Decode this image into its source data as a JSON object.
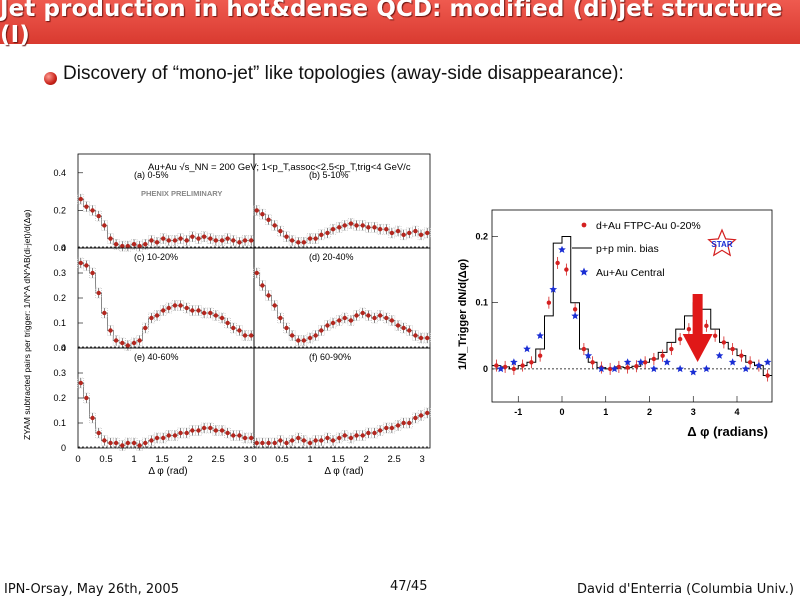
{
  "slide": {
    "title": "Jet production in hot&dense QCD: modified (di)jet structure (I)",
    "bullet": "Discovery of “mono-jet” like topologies (away-side disappearance):",
    "accent_color": "#e8463c"
  },
  "footer": {
    "left": "IPN-Orsay, May 26th, 2005",
    "center": "47/45",
    "right": "David d'Enterria (Columbia Univ.)"
  },
  "chart_data": [
    {
      "type": "scatter",
      "ylabel": "ZYAM subtracted pairs per trigger: 1/N^A dN^AB(di-jet)/d(Δφ)",
      "xlabel": "Δ φ (rad)",
      "header": "Au+Au √s_NN = 200 GeV;  1<p_T,assoc<2.5<p_T,trig<4 GeV/c",
      "watermark": "PHENIX PRELIMINARY",
      "xlim": [
        0,
        3.14
      ],
      "xticks": [
        "0",
        "0.5",
        "1",
        "1.5",
        "2",
        "2.5",
        "3"
      ],
      "panels": [
        {
          "label": "(a) 0-5%",
          "ylim": [
            0,
            0.5
          ],
          "yticks": [
            "0",
            "0.2",
            "0.4"
          ],
          "x": [
            0.05,
            0.15,
            0.26,
            0.37,
            0.47,
            0.58,
            0.68,
            0.79,
            0.89,
            1.0,
            1.1,
            1.2,
            1.31,
            1.41,
            1.52,
            1.62,
            1.73,
            1.83,
            1.94,
            2.04,
            2.15,
            2.25,
            2.36,
            2.46,
            2.57,
            2.67,
            2.77,
            2.88,
            2.98,
            3.09
          ],
          "y": [
            0.26,
            0.22,
            0.2,
            0.17,
            0.12,
            0.05,
            0.02,
            0.01,
            0.01,
            0.02,
            0.01,
            0.02,
            0.04,
            0.03,
            0.05,
            0.04,
            0.04,
            0.05,
            0.04,
            0.06,
            0.05,
            0.06,
            0.05,
            0.04,
            0.04,
            0.05,
            0.04,
            0.03,
            0.04,
            0.04
          ]
        },
        {
          "label": "(b) 5-10%",
          "ylim": [
            0,
            0.5
          ],
          "x": [
            0.05,
            0.15,
            0.26,
            0.37,
            0.47,
            0.58,
            0.68,
            0.79,
            0.89,
            1.0,
            1.1,
            1.2,
            1.31,
            1.41,
            1.52,
            1.62,
            1.73,
            1.83,
            1.94,
            2.04,
            2.15,
            2.25,
            2.36,
            2.46,
            2.57,
            2.67,
            2.77,
            2.88,
            2.98,
            3.09
          ],
          "y": [
            0.2,
            0.18,
            0.15,
            0.12,
            0.09,
            0.06,
            0.04,
            0.03,
            0.03,
            0.05,
            0.05,
            0.07,
            0.08,
            0.1,
            0.11,
            0.12,
            0.13,
            0.12,
            0.12,
            0.11,
            0.11,
            0.1,
            0.1,
            0.08,
            0.09,
            0.07,
            0.08,
            0.09,
            0.07,
            0.08
          ]
        },
        {
          "label": "(c) 10-20%",
          "ylim": [
            0,
            0.4
          ],
          "yticks": [
            "0",
            "0.1",
            "0.2",
            "0.3",
            "0.4"
          ],
          "x": [
            0.05,
            0.15,
            0.26,
            0.37,
            0.47,
            0.58,
            0.68,
            0.79,
            0.89,
            1.0,
            1.1,
            1.2,
            1.31,
            1.41,
            1.52,
            1.62,
            1.73,
            1.83,
            1.94,
            2.04,
            2.15,
            2.25,
            2.36,
            2.46,
            2.57,
            2.67,
            2.77,
            2.88,
            2.98,
            3.09
          ],
          "y": [
            0.34,
            0.33,
            0.3,
            0.22,
            0.14,
            0.07,
            0.03,
            0.02,
            0.01,
            0.02,
            0.03,
            0.08,
            0.12,
            0.13,
            0.15,
            0.16,
            0.17,
            0.17,
            0.16,
            0.15,
            0.15,
            0.14,
            0.14,
            0.13,
            0.12,
            0.1,
            0.08,
            0.07,
            0.05,
            0.05
          ]
        },
        {
          "label": "(d) 20-40%",
          "ylim": [
            0,
            0.4
          ],
          "x": [
            0.05,
            0.15,
            0.26,
            0.37,
            0.47,
            0.58,
            0.68,
            0.79,
            0.89,
            1.0,
            1.1,
            1.2,
            1.31,
            1.41,
            1.52,
            1.62,
            1.73,
            1.83,
            1.94,
            2.04,
            2.15,
            2.25,
            2.36,
            2.46,
            2.57,
            2.67,
            2.77,
            2.88,
            2.98,
            3.09
          ],
          "y": [
            0.3,
            0.25,
            0.21,
            0.17,
            0.12,
            0.08,
            0.05,
            0.03,
            0.03,
            0.04,
            0.05,
            0.07,
            0.09,
            0.1,
            0.11,
            0.12,
            0.11,
            0.13,
            0.14,
            0.13,
            0.12,
            0.13,
            0.12,
            0.11,
            0.09,
            0.08,
            0.07,
            0.05,
            0.04,
            0.04
          ]
        },
        {
          "label": "(e) 40-60%",
          "ylim": [
            0,
            0.4
          ],
          "yticks": [
            "0",
            "0.1",
            "0.2",
            "0.3",
            "0.4"
          ],
          "x": [
            0.05,
            0.15,
            0.26,
            0.37,
            0.47,
            0.58,
            0.68,
            0.79,
            0.89,
            1.0,
            1.1,
            1.2,
            1.31,
            1.41,
            1.52,
            1.62,
            1.73,
            1.83,
            1.94,
            2.04,
            2.15,
            2.25,
            2.36,
            2.46,
            2.57,
            2.67,
            2.77,
            2.88,
            2.98,
            3.09
          ],
          "y": [
            0.26,
            0.2,
            0.12,
            0.06,
            0.03,
            0.02,
            0.02,
            0.01,
            0.02,
            0.02,
            0.01,
            0.02,
            0.03,
            0.04,
            0.04,
            0.05,
            0.05,
            0.06,
            0.06,
            0.07,
            0.07,
            0.08,
            0.08,
            0.07,
            0.07,
            0.06,
            0.05,
            0.05,
            0.04,
            0.04
          ]
        },
        {
          "label": "(f) 60-90%",
          "ylim": [
            0,
            0.4
          ],
          "x": [
            0.05,
            0.15,
            0.26,
            0.37,
            0.47,
            0.58,
            0.68,
            0.79,
            0.89,
            1.0,
            1.1,
            1.2,
            1.31,
            1.41,
            1.52,
            1.62,
            1.73,
            1.83,
            1.94,
            2.04,
            2.15,
            2.25,
            2.36,
            2.46,
            2.57,
            2.67,
            2.77,
            2.88,
            2.98,
            3.09
          ],
          "y": [
            0.02,
            0.02,
            0.02,
            0.02,
            0.03,
            0.02,
            0.03,
            0.04,
            0.03,
            0.02,
            0.03,
            0.03,
            0.04,
            0.03,
            0.04,
            0.05,
            0.04,
            0.05,
            0.05,
            0.06,
            0.06,
            0.07,
            0.08,
            0.08,
            0.09,
            0.1,
            0.1,
            0.12,
            0.13,
            0.14
          ]
        }
      ]
    },
    {
      "type": "scatter",
      "xlabel": "Δ φ (radians)",
      "ylabel": "1/N_Trigger dN/d(Δφ)",
      "xlim": [
        -1.6,
        4.8
      ],
      "ylim": [
        -0.05,
        0.24
      ],
      "xticks": [
        -1,
        0,
        1,
        2,
        3,
        4
      ],
      "yticks": [
        0,
        0.1,
        0.2
      ],
      "legend": [
        "d+Au FTPC-Au 0-20%",
        "p+p min. bias",
        "Au+Au Central"
      ],
      "logo": "STAR",
      "series": [
        {
          "name": "d+Au FTPC-Au 0-20%",
          "color": "#d42020",
          "x": [
            -1.5,
            -1.3,
            -1.1,
            -0.9,
            -0.7,
            -0.5,
            -0.3,
            -0.1,
            0.1,
            0.3,
            0.5,
            0.7,
            0.9,
            1.1,
            1.3,
            1.5,
            1.7,
            1.9,
            2.1,
            2.3,
            2.5,
            2.7,
            2.9,
            3.1,
            3.3,
            3.5,
            3.7,
            3.9,
            4.1,
            4.3,
            4.5,
            4.7
          ],
          "y": [
            0.005,
            0.003,
            0.0,
            0.005,
            0.01,
            0.02,
            0.1,
            0.16,
            0.15,
            0.09,
            0.03,
            0.01,
            0.002,
            0.0,
            0.003,
            0.002,
            0.004,
            0.01,
            0.015,
            0.02,
            0.03,
            0.045,
            0.06,
            0.07,
            0.065,
            0.05,
            0.04,
            0.03,
            0.02,
            0.01,
            0.005,
            -0.01
          ]
        },
        {
          "name": "p+p min. bias",
          "color": "#000000",
          "x": [
            -1.5,
            -1.3,
            -1.1,
            -0.9,
            -0.7,
            -0.5,
            -0.3,
            -0.1,
            0.1,
            0.3,
            0.5,
            0.7,
            0.9,
            1.1,
            1.3,
            1.5,
            1.7,
            1.9,
            2.1,
            2.3,
            2.5,
            2.7,
            2.9,
            3.1,
            3.3,
            3.5,
            3.7,
            3.9,
            4.1,
            4.3,
            4.5,
            4.7
          ],
          "y": [
            0.005,
            0.003,
            0.0,
            0.005,
            0.01,
            0.03,
            0.08,
            0.19,
            0.2,
            0.1,
            0.03,
            0.01,
            0.002,
            0.0,
            0.003,
            0.002,
            0.004,
            0.01,
            0.015,
            0.025,
            0.04,
            0.06,
            0.08,
            0.1,
            0.09,
            0.06,
            0.04,
            0.03,
            0.02,
            0.01,
            0.005,
            -0.01
          ]
        },
        {
          "name": "Au+Au Central",
          "color": "#1a2ed4",
          "x": [
            -1.4,
            -1.1,
            -0.8,
            -0.5,
            -0.2,
            0.0,
            0.3,
            0.6,
            0.9,
            1.2,
            1.5,
            1.8,
            2.1,
            2.4,
            2.7,
            3.0,
            3.3,
            3.6,
            3.9,
            4.2,
            4.5,
            4.7
          ],
          "y": [
            0.0,
            0.01,
            0.03,
            0.05,
            0.12,
            0.18,
            0.08,
            0.02,
            0.0,
            0.0,
            0.01,
            0.01,
            0.0,
            0.01,
            0.0,
            -0.005,
            0.0,
            0.02,
            0.01,
            0.0,
            0.005,
            0.01
          ]
        }
      ],
      "annotation": "red arrow marking suppressed away-side peak near Δφ ≈ 3.1"
    }
  ]
}
